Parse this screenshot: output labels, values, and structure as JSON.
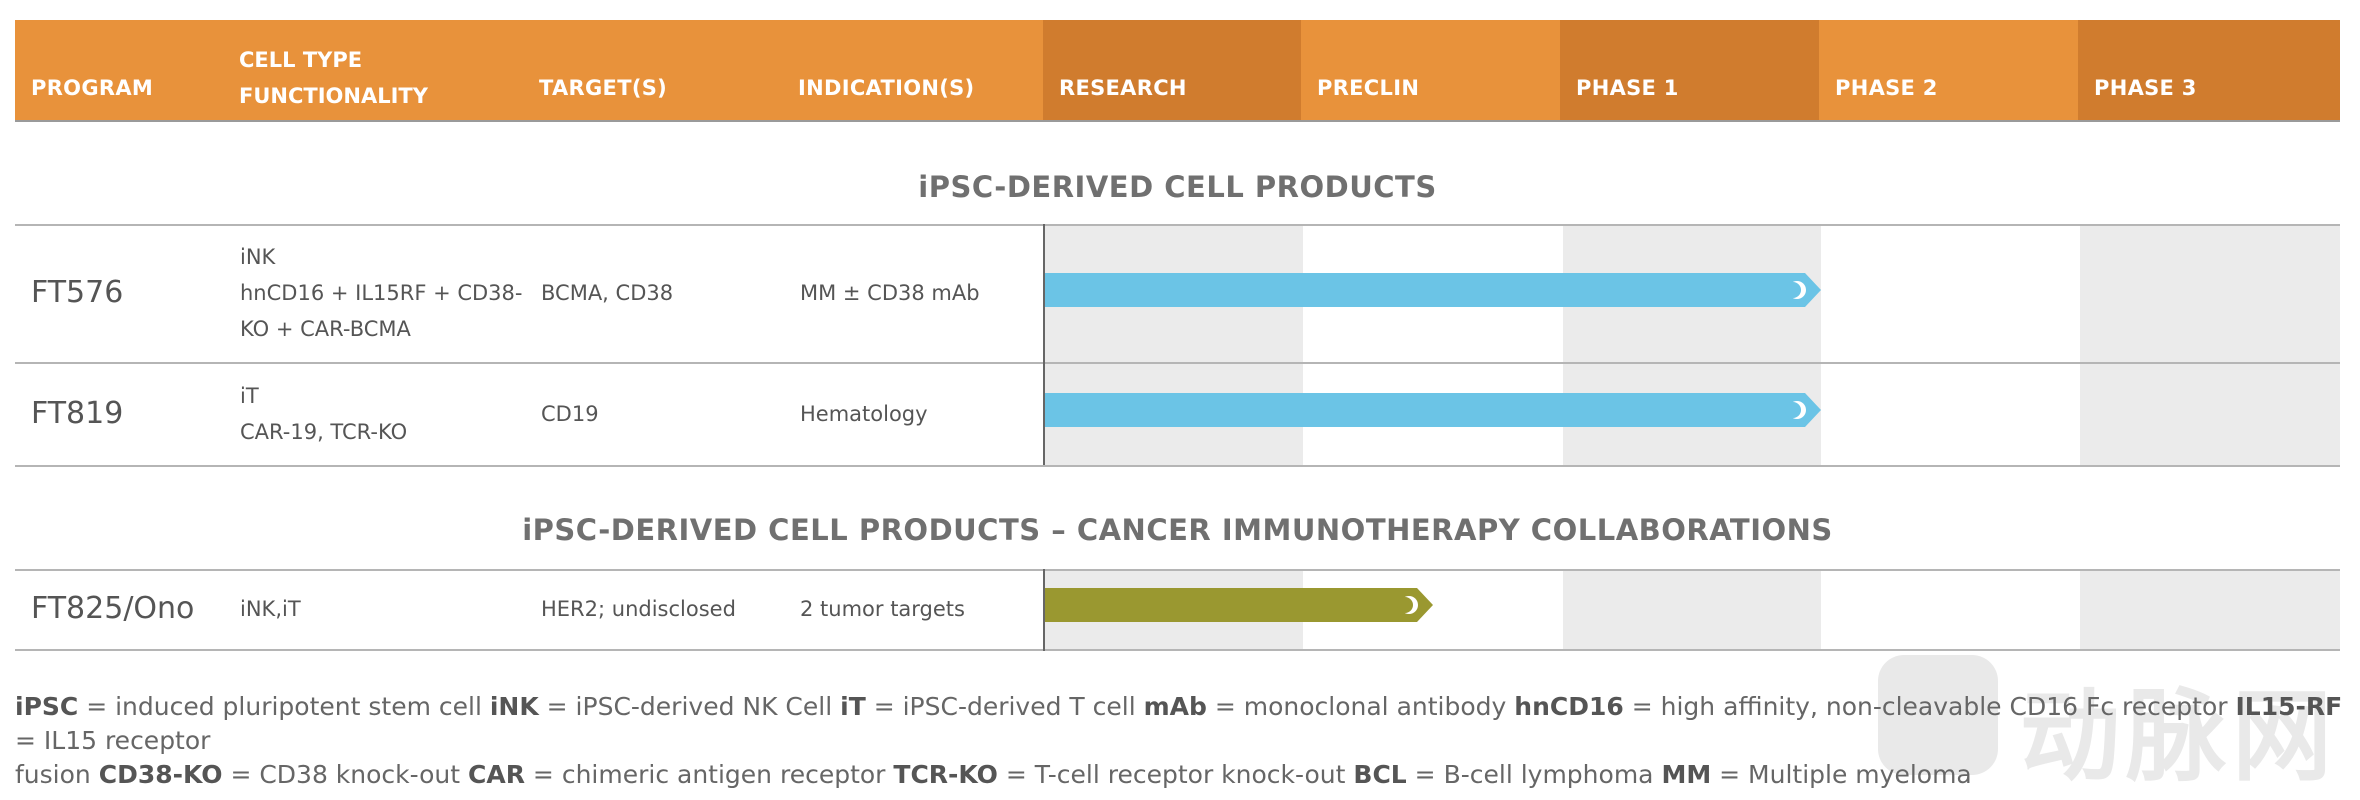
{
  "header": {
    "program": "PROGRAM",
    "cell_type_line1": "CELL TYPE",
    "cell_type_line2": "FUNCTIONALITY",
    "targets": "TARGET(S)",
    "indications": "INDICATION(S)",
    "phases": [
      "RESEARCH",
      "PRECLIN",
      "PHASE 1",
      "PHASE 2",
      "PHASE 3"
    ]
  },
  "colors": {
    "header_light": "#E8923B",
    "header_dark": "#D07C2E",
    "phase_shade": "#EBEBEB",
    "bar_blue": "#6BC4E6",
    "bar_olive": "#9A9830"
  },
  "sections": [
    {
      "title": "iPSC-DERIVED CELL PRODUCTS",
      "rows": [
        {
          "program": "FT576",
          "cell_lines": [
            "iNK",
            "hnCD16 + IL15RF + CD38-",
            "KO + CAR-BCMA"
          ],
          "targets": "BCMA, CD38",
          "indication": "MM ± CD38 mAb",
          "progress_phases": 3
        },
        {
          "program": "FT819",
          "cell_lines": [
            "iT",
            "CAR-19, TCR-KO"
          ],
          "targets": "CD19",
          "indication": "Hematology",
          "progress_phases": 3
        }
      ]
    },
    {
      "title": "iPSC-DERIVED CELL PRODUCTS – CANCER IMMUNOTHERAPY COLLABORATIONS",
      "rows": [
        {
          "program": "FT825/Ono",
          "cell_lines": [
            "iNK,iT"
          ],
          "targets": "HER2; undisclosed",
          "indication": "2 tumor targets",
          "progress_phases": 1.5
        }
      ]
    }
  ],
  "legend": {
    "line1": [
      {
        "term": "iPSC",
        "def": " = induced pluripotent stem cell "
      },
      {
        "term": "iNK",
        "def": " = iPSC-derived NK Cell "
      },
      {
        "term": "iT",
        "def": " = iPSC-derived T cell "
      },
      {
        "term": "mAb",
        "def": " = monoclonal antibody "
      },
      {
        "term": "hnCD16",
        "def": " = high affinity, non-cleavable CD16 Fc receptor "
      },
      {
        "term": "IL15-RF",
        "def": " = IL15 receptor"
      }
    ],
    "line2": [
      {
        "term": "",
        "def": "fusion "
      },
      {
        "term": "CD38-KO",
        "def": " = CD38 knock-out "
      },
      {
        "term": "CAR",
        "def": " = chimeric antigen receptor "
      },
      {
        "term": "TCR-KO",
        "def": " = T-cell receptor knock-out "
      },
      {
        "term": "BCL",
        "def": " = B-cell lymphoma "
      },
      {
        "term": "MM",
        "def": " = Multiple myeloma"
      }
    ]
  },
  "watermark": {
    "logo_icon": "vb-logo-icon",
    "text": "动脉网"
  }
}
